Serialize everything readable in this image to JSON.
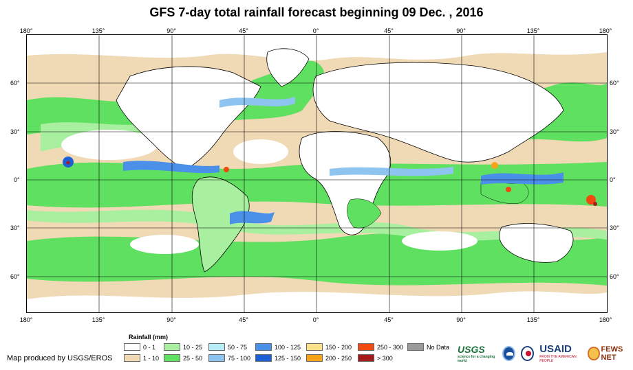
{
  "title": "GFS 7-day total rainfall forecast beginning 09 Dec. , 2016",
  "longitude_labels": [
    "180°",
    "135°",
    "90°",
    "45°",
    "0°",
    "45°",
    "90°",
    "135°",
    "180°"
  ],
  "latitude_labels": [
    "60°",
    "30°",
    "0°",
    "30°",
    "60°"
  ],
  "legend": {
    "title": "Rainfall (mm)",
    "items": [
      {
        "label": "0 - 1",
        "color": "#ffffff"
      },
      {
        "label": "1 - 10",
        "color": "#f0d9b5"
      },
      {
        "label": "10 - 25",
        "color": "#a8f0a0"
      },
      {
        "label": "25 - 50",
        "color": "#5fe060"
      },
      {
        "label": "50 - 75",
        "color": "#b8ecf6"
      },
      {
        "label": "75 - 100",
        "color": "#8ec4f0"
      },
      {
        "label": "100 - 125",
        "color": "#4a8fe8"
      },
      {
        "label": "125 - 150",
        "color": "#1f5fd6"
      },
      {
        "label": "150 - 200",
        "color": "#fde08a"
      },
      {
        "label": "200 - 250",
        "color": "#f7a21b"
      },
      {
        "label": "250 - 300",
        "color": "#f04a10"
      },
      {
        "label": "> 300",
        "color": "#a61b1b"
      },
      {
        "label": "No Data",
        "color": "#9a9a9a"
      }
    ]
  },
  "credit": "Map produced by USGS/EROS",
  "logos": {
    "usgs": "USGS",
    "usgs_tagline": "science for a changing world",
    "usaid": "USAID",
    "usaid_tagline": "FROM THE AMERICAN PEOPLE",
    "fews": "FEWS NET"
  }
}
